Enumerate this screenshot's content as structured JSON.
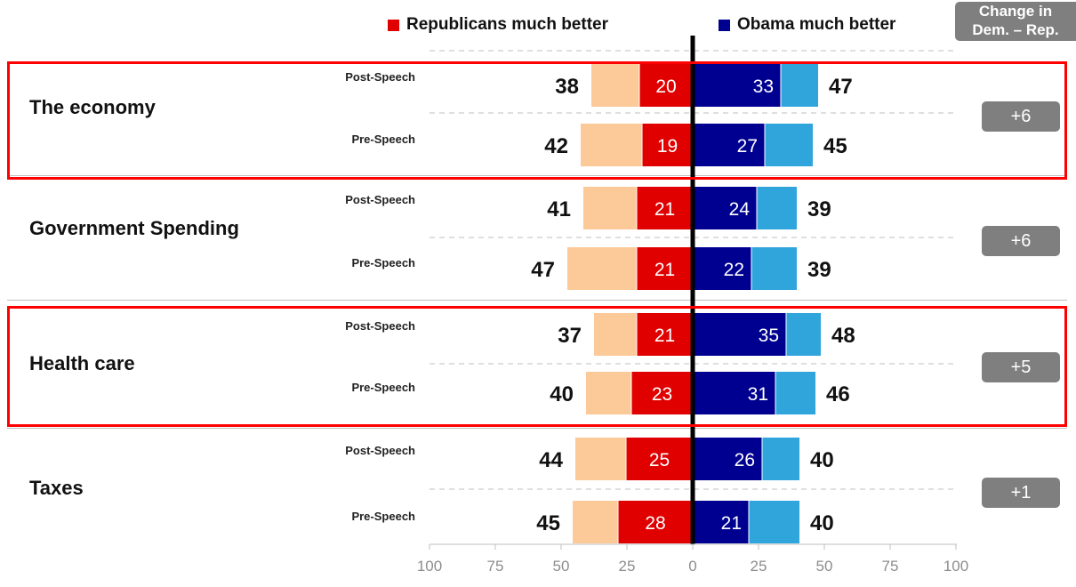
{
  "legend": {
    "republicans": {
      "label": "Republicans much better",
      "color": "#e00000"
    },
    "obama": {
      "label": "Obama much better",
      "color": "#000090"
    }
  },
  "change_header": {
    "line1": "Change in",
    "line2": "Dem. – Rep."
  },
  "colors": {
    "rep_much": "#e00000",
    "rep_somewhat": "#fcc998",
    "dem_much": "#000090",
    "dem_somewhat": "#2fa5dc",
    "highlight": "#ff0000",
    "badge": "#7f7f7f"
  },
  "chart_data": {
    "type": "bar",
    "orientation": "horizontal-diverging",
    "xlim": [
      -100,
      100
    ],
    "x_tick_labels": [
      "100",
      "75",
      "50",
      "25",
      "0",
      "25",
      "50",
      "75",
      "100"
    ],
    "categories": [
      {
        "name": "The economy",
        "highlighted": true,
        "change": "+6",
        "rows": [
          {
            "label": "Post-Speech",
            "rep_much": 20,
            "rep_total": 38,
            "dem_much": 33,
            "dem_total": 47
          },
          {
            "label": "Pre-Speech",
            "rep_much": 19,
            "rep_total": 42,
            "dem_much": 27,
            "dem_total": 45
          }
        ]
      },
      {
        "name": "Government Spending",
        "highlighted": false,
        "change": "+6",
        "rows": [
          {
            "label": "Post-Speech",
            "rep_much": 21,
            "rep_total": 41,
            "dem_much": 24,
            "dem_total": 39
          },
          {
            "label": "Pre-Speech",
            "rep_much": 21,
            "rep_total": 47,
            "dem_much": 22,
            "dem_total": 39
          }
        ]
      },
      {
        "name": "Health care",
        "highlighted": true,
        "change": "+5",
        "rows": [
          {
            "label": "Post-Speech",
            "rep_much": 21,
            "rep_total": 37,
            "dem_much": 35,
            "dem_total": 48
          },
          {
            "label": "Pre-Speech",
            "rep_much": 23,
            "rep_total": 40,
            "dem_much": 31,
            "dem_total": 46
          }
        ]
      },
      {
        "name": "Taxes",
        "highlighted": false,
        "change": "+1",
        "rows": [
          {
            "label": "Post-Speech",
            "rep_much": 25,
            "rep_total": 44,
            "dem_much": 26,
            "dem_total": 40
          },
          {
            "label": "Pre-Speech",
            "rep_much": 28,
            "rep_total": 45,
            "dem_much": 21,
            "dem_total": 40
          }
        ]
      }
    ]
  }
}
